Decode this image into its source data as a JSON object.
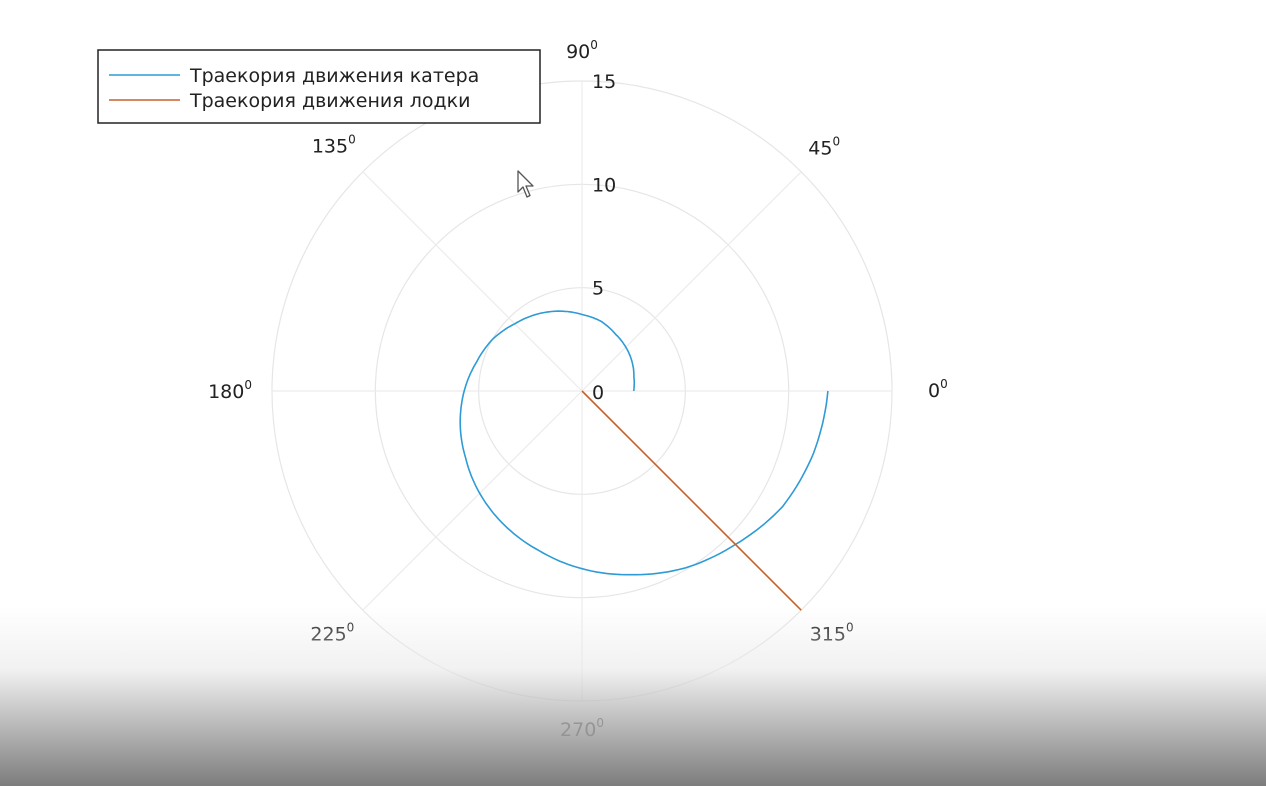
{
  "chart_data": {
    "type": "line",
    "projection": "polar",
    "title": "",
    "r_ticks": [
      "0",
      "5",
      "10",
      "15"
    ],
    "rlim": [
      0,
      15
    ],
    "angle_ticks": [
      {
        "deg": "0",
        "sup": "0"
      },
      {
        "deg": "45",
        "sup": "0"
      },
      {
        "deg": "90",
        "sup": "0"
      },
      {
        "deg": "135",
        "sup": "0"
      },
      {
        "deg": "180",
        "sup": "0"
      },
      {
        "deg": "225",
        "sup": "0"
      },
      {
        "deg": "270",
        "sup": "0"
      },
      {
        "deg": "315",
        "sup": "0"
      }
    ],
    "grid": true,
    "legend_position": "top-left",
    "series": [
      {
        "name": "Траекория движения катера",
        "color": "#2e9bd6",
        "kind": "spiral",
        "theta_deg": [
          0,
          15,
          30,
          45,
          60,
          75,
          90,
          105,
          120,
          135,
          150,
          165,
          180,
          195,
          210,
          225,
          240,
          255,
          270,
          285,
          300,
          315,
          330,
          345,
          360
        ],
        "r": [
          2.5,
          2.6,
          2.8,
          3.0,
          3.2,
          3.5,
          3.7,
          4.0,
          4.3,
          4.6,
          5.0,
          5.3,
          5.7,
          6.1,
          6.5,
          7.0,
          7.5,
          8.0,
          8.6,
          9.2,
          9.9,
          10.5,
          11.2,
          11.6,
          11.9
        ]
      },
      {
        "name": "Траекория движения лодки",
        "color": "#c8602a",
        "kind": "ray",
        "theta_deg": [
          315,
          315
        ],
        "r": [
          0,
          15
        ]
      }
    ]
  },
  "legend": {
    "items": [
      {
        "label": "Траекория движения катера",
        "color": "#2e9bd6"
      },
      {
        "label": "Траекория движения лодки",
        "color": "#c8602a"
      }
    ]
  }
}
